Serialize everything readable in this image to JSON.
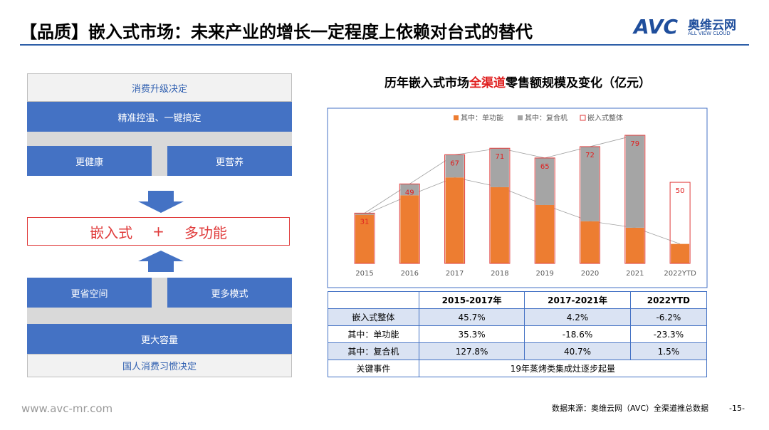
{
  "header": {
    "title": "【品质】嵌入式市场：未来产业的增长一定程度上依赖对台式的替代",
    "logo_mark": "AVC",
    "logo_name": "奥维云网",
    "logo_sub": "ALL VIEW CLOUD"
  },
  "diagram": {
    "top_label": "消费升级决定",
    "top_bar": "精准控温、一键搞定",
    "top_left": "更健康",
    "top_right": "更营养",
    "center": [
      "嵌入式",
      "+",
      "多功能"
    ],
    "bottom_left": "更省空间",
    "bottom_right": "更多模式",
    "bottom_bar": "更大容量",
    "bottom_label": "国人消费习惯决定"
  },
  "chart_data": {
    "type": "stacked_bar",
    "title": [
      "历年嵌入式市场",
      "全渠道",
      "零售额规模及变化（亿元）"
    ],
    "categories": [
      "2015",
      "2016",
      "2017",
      "2018",
      "2019",
      "2020",
      "2021",
      "2022YTD"
    ],
    "series": [
      {
        "name": "其中：单功能",
        "color": "#ed7d31",
        "values": [
          30,
          42,
          53,
          47,
          36,
          26,
          22,
          12
        ]
      },
      {
        "name": "其中：复合机",
        "color": "#a5a5a5",
        "values": [
          1,
          7,
          14,
          24,
          29,
          46,
          57,
          null
        ]
      },
      {
        "name": "嵌入式整体",
        "color": "#e03c3c",
        "values": [
          31,
          49,
          67,
          71,
          65,
          72,
          79,
          50
        ]
      }
    ]
  },
  "table": {
    "header": [
      "2015-2017年",
      "2017-2021年",
      "2022YTD"
    ],
    "rows": [
      [
        "嵌入式整体",
        "45.7%",
        "4.2%",
        "-6.2%"
      ],
      [
        "其中：单功能",
        "35.3%",
        "-18.6%",
        "-23.3%"
      ],
      [
        "其中：复合机",
        "127.8%",
        "40.7%",
        "1.5%"
      ],
      [
        "关键事件",
        "19年蒸烤类集成灶逐步起量"
      ]
    ]
  },
  "footer": {
    "website": "www.avc-mr.com",
    "source": "数据来源：奥维云网（AVC）全渠道推总数据",
    "page": "-15-"
  }
}
